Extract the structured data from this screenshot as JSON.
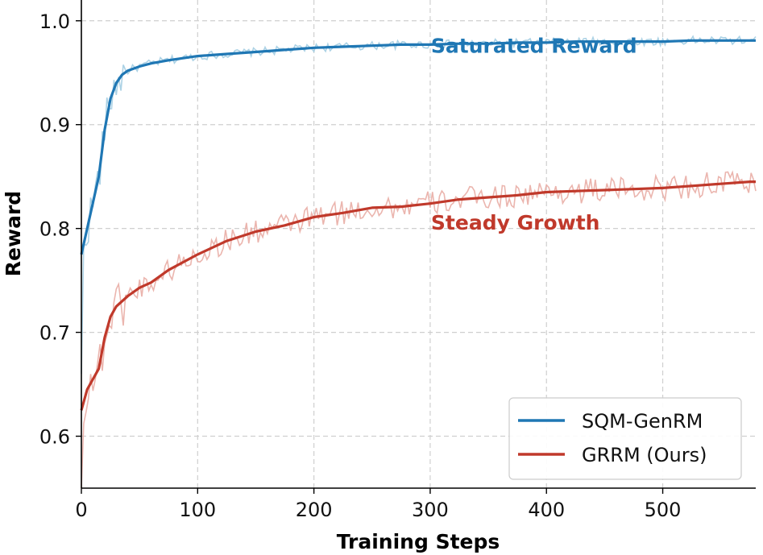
{
  "chart_data": {
    "type": "line",
    "title": "",
    "xlabel": "Training Steps",
    "ylabel": "Reward",
    "xlim": [
      0,
      580
    ],
    "ylim": [
      0.55,
      1.02
    ],
    "x_ticks": [
      0,
      100,
      200,
      300,
      400,
      500
    ],
    "x_tick_labels": [
      "0",
      "100",
      "200",
      "300",
      "400",
      "500"
    ],
    "y_ticks": [
      0.6,
      0.7,
      0.8,
      0.9,
      1.0
    ],
    "y_tick_labels": [
      "0.6",
      "0.7",
      "0.8",
      "0.9",
      "1.0"
    ],
    "grid": true,
    "legend_position": "lower-right",
    "series": [
      {
        "name": "SQM-GenRM",
        "color": "#1f77b4",
        "raw_color": "#9ecae1",
        "x": [
          0,
          5,
          10,
          15,
          20,
          25,
          30,
          35,
          40,
          50,
          60,
          75,
          100,
          125,
          150,
          175,
          200,
          225,
          250,
          275,
          300,
          325,
          350,
          375,
          400,
          425,
          450,
          475,
          500,
          525,
          550,
          575,
          580
        ],
        "values": [
          0.775,
          0.8,
          0.825,
          0.85,
          0.895,
          0.925,
          0.94,
          0.948,
          0.952,
          0.956,
          0.959,
          0.962,
          0.966,
          0.968,
          0.97,
          0.972,
          0.974,
          0.975,
          0.976,
          0.977,
          0.977,
          0.978,
          0.978,
          0.979,
          0.979,
          0.98,
          0.98,
          0.98,
          0.98,
          0.981,
          0.981,
          0.981,
          0.981
        ]
      },
      {
        "name": "GRRM (Ours)",
        "color": "#c0392b",
        "raw_color": "#e8a8a0",
        "x": [
          0,
          5,
          10,
          15,
          20,
          25,
          30,
          40,
          50,
          60,
          75,
          100,
          125,
          150,
          175,
          200,
          225,
          250,
          275,
          300,
          325,
          350,
          375,
          400,
          425,
          450,
          475,
          500,
          525,
          550,
          575,
          580
        ],
        "values": [
          0.625,
          0.645,
          0.655,
          0.665,
          0.695,
          0.715,
          0.725,
          0.735,
          0.743,
          0.748,
          0.76,
          0.775,
          0.788,
          0.797,
          0.803,
          0.811,
          0.815,
          0.82,
          0.821,
          0.824,
          0.828,
          0.83,
          0.832,
          0.835,
          0.836,
          0.837,
          0.838,
          0.839,
          0.841,
          0.843,
          0.845,
          0.845
        ]
      }
    ],
    "annotations": [
      {
        "text": "Saturated Reward",
        "x": 300,
        "y": 0.976,
        "color": "#1f77b4"
      },
      {
        "text": "Steady Growth",
        "x": 300,
        "y": 0.806,
        "color": "#c0392b"
      }
    ]
  }
}
